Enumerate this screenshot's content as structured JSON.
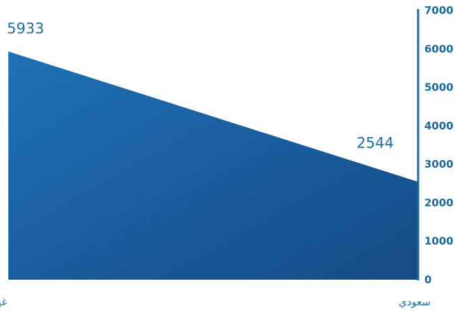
{
  "chart_data": {
    "type": "area",
    "title": "",
    "xlabel": "",
    "ylabel": "",
    "categories": [
      "غير سعودي",
      "سعودي"
    ],
    "values": [
      5933,
      2544
    ],
    "data_labels": [
      "5933",
      "2544"
    ],
    "ylim": [
      0,
      7000
    ],
    "yticks": [
      0,
      1000,
      2000,
      3000,
      4000,
      5000,
      6000,
      7000
    ],
    "ytick_labels": [
      "0",
      "1000",
      "2000",
      "3000",
      "4000",
      "5000",
      "6000",
      "7000"
    ],
    "y_axis_side": "right",
    "grid": false,
    "legend": "none",
    "colors": {
      "fill_light": "#2277c0",
      "fill_dark": "#154f8e",
      "axis": "#1a6b9a",
      "text": "#1f6e9e"
    }
  }
}
